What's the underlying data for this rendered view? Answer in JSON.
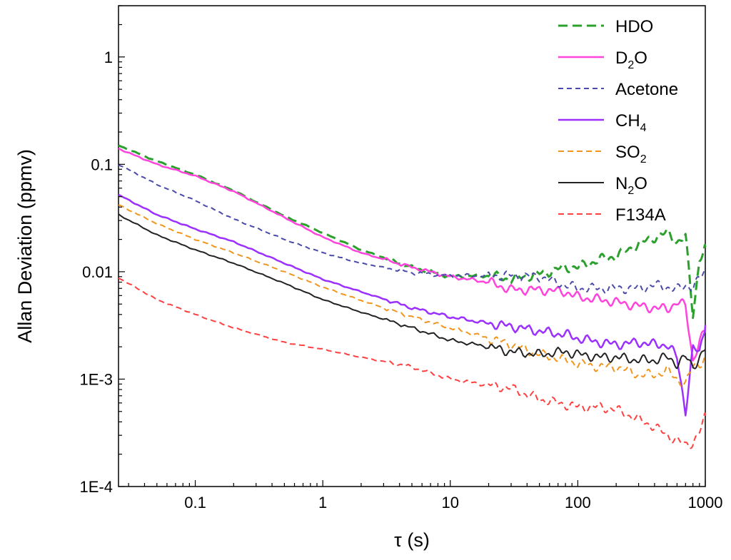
{
  "chart_data": {
    "type": "line",
    "title": "",
    "xlabel": "τ (s)",
    "ylabel": "Allan Deviation (ppmv)",
    "xscale": "log",
    "yscale": "log",
    "xlim": [
      0.025,
      1000
    ],
    "ylim": [
      0.0001,
      3
    ],
    "x_ticks": [
      {
        "value": 0.1,
        "label": "0.1"
      },
      {
        "value": 1,
        "label": "1"
      },
      {
        "value": 10,
        "label": "10"
      },
      {
        "value": 100,
        "label": "100"
      },
      {
        "value": 1000,
        "label": "1000"
      }
    ],
    "y_ticks": [
      {
        "value": 0.0001,
        "label": "1E-4"
      },
      {
        "value": 0.001,
        "label": "1E-3"
      },
      {
        "value": 0.01,
        "label": "0.01"
      },
      {
        "value": 0.1,
        "label": "0.1"
      },
      {
        "value": 1,
        "label": "1"
      }
    ],
    "legend_position": "top-right",
    "series": [
      {
        "name": "HDO",
        "label_main": "HDO",
        "label_sub": "",
        "label_tail": "",
        "color": "#2ca02c",
        "dash": "13,7",
        "width": 3,
        "x": [
          0.025,
          0.05,
          0.1,
          0.2,
          0.5,
          1,
          2,
          5,
          10,
          20,
          30,
          50,
          80,
          100,
          150,
          200,
          300,
          400,
          500,
          600,
          700,
          800,
          900,
          1000
        ],
        "y": [
          0.15,
          0.107,
          0.08,
          0.057,
          0.033,
          0.023,
          0.016,
          0.011,
          0.009,
          0.0092,
          0.0085,
          0.0095,
          0.011,
          0.011,
          0.013,
          0.014,
          0.018,
          0.021,
          0.023,
          0.019,
          0.021,
          0.004,
          0.013,
          0.017
        ]
      },
      {
        "name": "D2O",
        "label_main": "D",
        "label_sub": "2",
        "label_tail": "O",
        "color": "#ff44dd",
        "dash": "",
        "width": 2.5,
        "x": [
          0.025,
          0.05,
          0.1,
          0.2,
          0.5,
          1,
          2,
          5,
          10,
          20,
          30,
          50,
          80,
          100,
          150,
          200,
          300,
          400,
          500,
          600,
          700,
          800,
          900,
          1000
        ],
        "y": [
          0.14,
          0.1,
          0.078,
          0.056,
          0.032,
          0.021,
          0.015,
          0.011,
          0.009,
          0.008,
          0.0068,
          0.0068,
          0.0065,
          0.0058,
          0.0055,
          0.0052,
          0.0048,
          0.0046,
          0.0045,
          0.0052,
          0.0048,
          0.0015,
          0.0022,
          0.0028
        ]
      },
      {
        "name": "Acetone",
        "label_main": "Acetone",
        "label_sub": "",
        "label_tail": "",
        "color": "#4a4aa8",
        "dash": "7,5",
        "width": 2,
        "x": [
          0.025,
          0.05,
          0.1,
          0.2,
          0.5,
          1,
          2,
          5,
          10,
          20,
          30,
          50,
          80,
          100,
          150,
          200,
          300,
          400,
          500,
          600,
          700,
          800,
          900,
          1000
        ],
        "y": [
          0.1,
          0.065,
          0.046,
          0.031,
          0.02,
          0.015,
          0.012,
          0.0098,
          0.0092,
          0.0092,
          0.0092,
          0.009,
          0.0075,
          0.007,
          0.007,
          0.007,
          0.007,
          0.0075,
          0.0072,
          0.0068,
          0.0075,
          0.0072,
          0.0085,
          0.0105
        ]
      },
      {
        "name": "CH4",
        "label_main": "CH",
        "label_sub": "4",
        "label_tail": "",
        "color": "#9b30ff",
        "dash": "",
        "width": 2.5,
        "x": [
          0.025,
          0.05,
          0.1,
          0.2,
          0.5,
          1,
          2,
          5,
          10,
          20,
          30,
          50,
          80,
          100,
          150,
          200,
          300,
          400,
          500,
          600,
          700,
          800,
          900,
          1000
        ],
        "y": [
          0.052,
          0.034,
          0.025,
          0.019,
          0.012,
          0.0085,
          0.0065,
          0.0046,
          0.0038,
          0.0033,
          0.0031,
          0.0028,
          0.0026,
          0.0024,
          0.0022,
          0.0021,
          0.0022,
          0.0021,
          0.0021,
          0.0016,
          0.0005,
          0.0019,
          0.0018,
          0.0032
        ]
      },
      {
        "name": "SO2",
        "label_main": "SO",
        "label_sub": "2",
        "label_tail": "",
        "color": "#f0961e",
        "dash": "8,5",
        "width": 2,
        "x": [
          0.025,
          0.05,
          0.1,
          0.2,
          0.5,
          1,
          2,
          5,
          10,
          20,
          30,
          50,
          80,
          100,
          150,
          200,
          300,
          400,
          500,
          600,
          700,
          800,
          900,
          1000
        ],
        "y": [
          0.042,
          0.028,
          0.02,
          0.015,
          0.01,
          0.0072,
          0.0054,
          0.0038,
          0.003,
          0.0024,
          0.0021,
          0.0017,
          0.0015,
          0.0014,
          0.0013,
          0.0013,
          0.0011,
          0.0011,
          0.0012,
          0.001,
          0.0009,
          0.0013,
          0.0014,
          0.0016
        ]
      },
      {
        "name": "N2O",
        "label_main": "N",
        "label_sub": "2",
        "label_tail": "O",
        "color": "#222222",
        "dash": "",
        "width": 2,
        "x": [
          0.025,
          0.05,
          0.1,
          0.2,
          0.5,
          1,
          2,
          5,
          10,
          20,
          30,
          50,
          80,
          100,
          150,
          200,
          300,
          400,
          500,
          600,
          700,
          800,
          900,
          1000
        ],
        "y": [
          0.034,
          0.022,
          0.016,
          0.012,
          0.0078,
          0.0055,
          0.0042,
          0.003,
          0.0023,
          0.002,
          0.0018,
          0.0017,
          0.0018,
          0.0017,
          0.0016,
          0.0016,
          0.0015,
          0.0015,
          0.0016,
          0.0014,
          0.0016,
          0.0013,
          0.0016,
          0.0019
        ]
      },
      {
        "name": "F134A",
        "label_main": "F134A",
        "label_sub": "",
        "label_tail": "",
        "color": "#ff4040",
        "dash": "8,5",
        "width": 2,
        "x": [
          0.025,
          0.05,
          0.1,
          0.2,
          0.5,
          1,
          2,
          5,
          10,
          20,
          30,
          50,
          80,
          100,
          150,
          200,
          300,
          400,
          500,
          600,
          700,
          800,
          900,
          1000
        ],
        "y": [
          0.0088,
          0.0055,
          0.004,
          0.003,
          0.0022,
          0.0019,
          0.0016,
          0.0013,
          0.001,
          0.00088,
          0.00082,
          0.00065,
          0.00058,
          0.00055,
          0.00055,
          0.00052,
          0.00042,
          0.00036,
          0.0003,
          0.00027,
          0.00024,
          0.00026,
          0.00032,
          0.00045
        ]
      }
    ]
  }
}
